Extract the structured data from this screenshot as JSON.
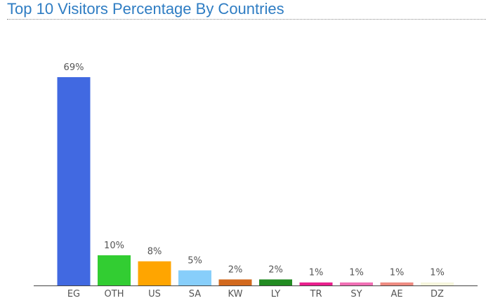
{
  "chart_data": {
    "type": "bar",
    "title": "Top 10 Visitors Percentage By Countries",
    "categories": [
      "EG",
      "OTH",
      "US",
      "SA",
      "KW",
      "LY",
      "TR",
      "SY",
      "AE",
      "DZ"
    ],
    "values": [
      69,
      10,
      8,
      5,
      2,
      2,
      1,
      1,
      1,
      1
    ],
    "value_labels": [
      "69%",
      "10%",
      "8%",
      "5%",
      "2%",
      "2%",
      "1%",
      "1%",
      "1%",
      "1%"
    ],
    "colors": [
      "#4169e1",
      "#32cd32",
      "#ffa500",
      "#87cefa",
      "#d2691e",
      "#228b22",
      "#e91e8c",
      "#f06eb4",
      "#ee8a80",
      "#f5f5dc"
    ]
  }
}
